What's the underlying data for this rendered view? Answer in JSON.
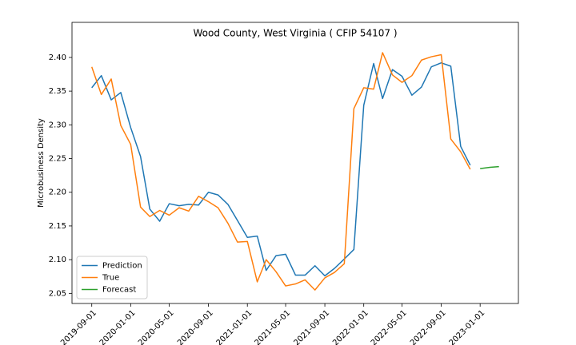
{
  "chart_data": {
    "type": "line",
    "title": "Wood County, West Virginia ( CFIP 54107 )",
    "y_label": "Microbusiness Density",
    "x": [
      "2019-09-01",
      "2019-10-01",
      "2019-11-01",
      "2019-12-01",
      "2020-01-01",
      "2020-02-01",
      "2020-03-01",
      "2020-04-01",
      "2020-05-01",
      "2020-06-01",
      "2020-07-01",
      "2020-08-01",
      "2020-09-01",
      "2020-10-01",
      "2020-11-01",
      "2020-12-01",
      "2021-01-01",
      "2021-02-01",
      "2021-03-01",
      "2021-04-01",
      "2021-05-01",
      "2021-06-01",
      "2021-07-01",
      "2021-08-01",
      "2021-09-01",
      "2021-10-01",
      "2021-11-01",
      "2021-12-01",
      "2022-01-01",
      "2022-02-01",
      "2022-03-01",
      "2022-04-01",
      "2022-05-01",
      "2022-06-01",
      "2022-07-01",
      "2022-08-01",
      "2022-09-01",
      "2022-10-01",
      "2022-11-01",
      "2022-12-01",
      "2023-01-01",
      "2023-02-01",
      "2023-03-01"
    ],
    "series": [
      {
        "name": "Prediction",
        "color": "#1f77b4",
        "values": [
          2.355,
          2.373,
          2.337,
          2.348,
          2.296,
          2.253,
          2.175,
          2.157,
          2.183,
          2.18,
          2.182,
          2.181,
          2.2,
          2.196,
          2.182,
          2.158,
          2.133,
          2.135,
          2.084,
          2.106,
          2.108,
          2.077,
          2.077,
          2.091,
          2.076,
          2.087,
          2.101,
          2.115,
          2.329,
          2.391,
          2.339,
          2.382,
          2.372,
          2.344,
          2.356,
          2.386,
          2.392,
          2.387,
          2.268,
          2.24,
          null,
          null,
          null
        ]
      },
      {
        "name": "True",
        "color": "#ff7f0e",
        "values": [
          2.386,
          2.345,
          2.368,
          2.299,
          2.271,
          2.178,
          2.164,
          2.173,
          2.166,
          2.177,
          2.172,
          2.194,
          2.186,
          2.177,
          2.154,
          2.126,
          2.127,
          2.067,
          2.1,
          2.082,
          2.061,
          2.064,
          2.07,
          2.055,
          2.073,
          2.081,
          2.094,
          2.324,
          2.355,
          2.353,
          2.407,
          2.374,
          2.363,
          2.373,
          2.396,
          2.401,
          2.404,
          2.279,
          2.26,
          2.234,
          null,
          null,
          null
        ]
      },
      {
        "name": "Forecast",
        "color": "#2ca02c",
        "values": [
          null,
          null,
          null,
          null,
          null,
          null,
          null,
          null,
          null,
          null,
          null,
          null,
          null,
          null,
          null,
          null,
          null,
          null,
          null,
          null,
          null,
          null,
          null,
          null,
          null,
          null,
          null,
          null,
          null,
          null,
          null,
          null,
          null,
          null,
          null,
          null,
          null,
          null,
          null,
          null,
          2.235,
          2.237,
          2.238
        ]
      }
    ],
    "xlim": [
      "2019-07-01",
      "2023-05-01"
    ],
    "xticks": [
      "2019-09-01",
      "2020-01-01",
      "2020-05-01",
      "2020-09-01",
      "2021-01-01",
      "2021-05-01",
      "2021-09-01",
      "2022-01-01",
      "2022-05-01",
      "2022-09-01",
      "2023-01-01"
    ],
    "ylim": [
      2.035,
      2.452
    ],
    "yticks": [
      2.05,
      {
        "value": 2.1,
        "label": "2.10"
      },
      2.15,
      {
        "value": 2.2,
        "label": "2.20"
      },
      2.25,
      {
        "value": 2.3,
        "label": "2.30"
      },
      2.35,
      {
        "value": 2.4,
        "label": "2.40"
      }
    ],
    "legend": "lower left",
    "grid": false
  }
}
